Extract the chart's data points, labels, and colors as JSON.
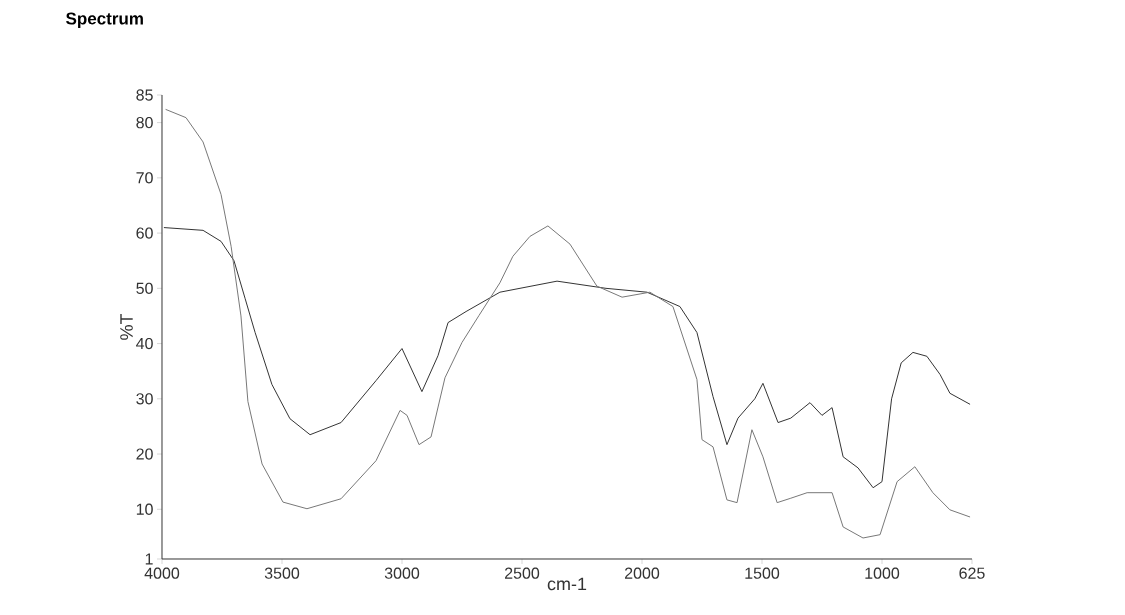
{
  "chart_data": {
    "type": "line",
    "title": "Spectrum",
    "xlabel": "cm-1",
    "ylabel": "%T",
    "xlim": [
      4000,
      625
    ],
    "ylim": [
      1,
      85
    ],
    "xticks": [
      4000,
      3500,
      3000,
      2500,
      2000,
      1500,
      1000,
      625
    ],
    "yticks": [
      1,
      10,
      20,
      30,
      40,
      50,
      60,
      70,
      80,
      85
    ],
    "marker": "none",
    "series": [
      {
        "color": "#333333",
        "x": [
          3992,
          3829,
          3754,
          3700,
          3654,
          3612,
          3542,
          3467,
          3383,
          3254,
          3108,
          3000,
          2917,
          2850,
          2808,
          2733,
          2592,
          2354,
          2150,
          1979,
          1842,
          1771,
          1704,
          1646,
          1600,
          1530,
          1496,
          1433,
          1380,
          1300,
          1250,
          1208,
          1162,
          1100,
          1037,
          1000,
          960,
          920,
          871,
          813,
          758,
          717,
          633
        ],
        "values": [
          61,
          60.5,
          58.5,
          55,
          48.2,
          42,
          32.6,
          26.4,
          23.5,
          25.7,
          33.3,
          39.1,
          31.3,
          37.8,
          43.8,
          45.8,
          49.3,
          51.3,
          50,
          49.3,
          46.7,
          42,
          30.4,
          21.7,
          26.5,
          30,
          32.8,
          25.7,
          26.5,
          29.3,
          27,
          28.4,
          19.5,
          17.5,
          13.9,
          15,
          30,
          36.5,
          38.4,
          37.7,
          34.4,
          31,
          29
        ]
      },
      {
        "color": "#777777",
        "x": [
          3985,
          3900,
          3829,
          3754,
          3712,
          3671,
          3642,
          3583,
          3496,
          3396,
          3254,
          3108,
          3008,
          2979,
          2929,
          2879,
          2821,
          2750,
          2679,
          2592,
          2538,
          2467,
          2392,
          2300,
          2188,
          2083,
          1967,
          1871,
          1771,
          1750,
          1704,
          1646,
          1604,
          1542,
          1496,
          1437,
          1380,
          1312,
          1208,
          1162,
          1079,
          1008,
          937,
          863,
          788,
          717,
          633
        ],
        "values": [
          82.4,
          80.9,
          76.5,
          67,
          57.6,
          45,
          29.5,
          18.2,
          11.3,
          10.1,
          11.9,
          18.8,
          27.9,
          27,
          21.7,
          23.1,
          33.8,
          40.2,
          45.1,
          51,
          55.8,
          59.4,
          61.3,
          58,
          50.4,
          48.4,
          49.3,
          46.7,
          33.5,
          22.6,
          21.3,
          11.7,
          11.2,
          24.4,
          19.5,
          11.2,
          12,
          13,
          13,
          6.8,
          4.8,
          5.4,
          15,
          17.7,
          13,
          9.9,
          8.6
        ]
      }
    ]
  }
}
